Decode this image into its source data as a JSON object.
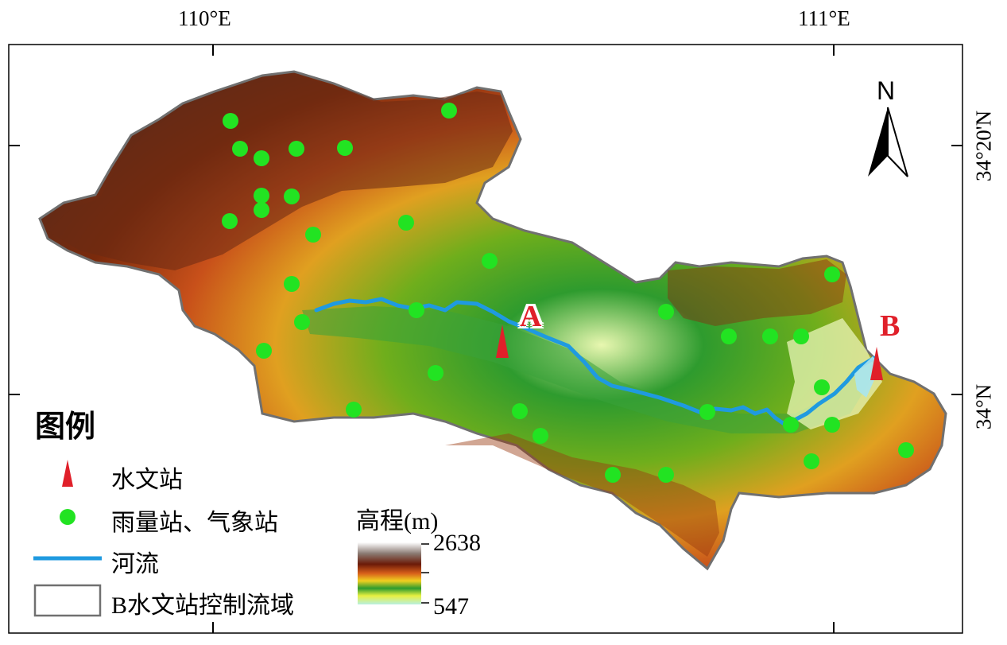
{
  "axes": {
    "top_left_lon": "110°E",
    "top_right_lon": "111°E",
    "right_upper_lat": "34°20'N",
    "right_lower_lat": "34°N"
  },
  "north_arrow": {
    "label": "N"
  },
  "site_labels": {
    "A": "A",
    "B": "B"
  },
  "legend": {
    "title": "图例",
    "hydrological_station": "水文站",
    "rain_weather_station": "雨量站、气象站",
    "river": "河流",
    "basin": "B水文站控制流域"
  },
  "elevation_legend": {
    "title": "高程(m)",
    "max": "2638",
    "min": "547"
  },
  "colors": {
    "river": "#1f9ae0",
    "station_marker": "#e0202a",
    "rain_station": "#22e322",
    "label_red": "#e0202a"
  },
  "station_count": 40
}
